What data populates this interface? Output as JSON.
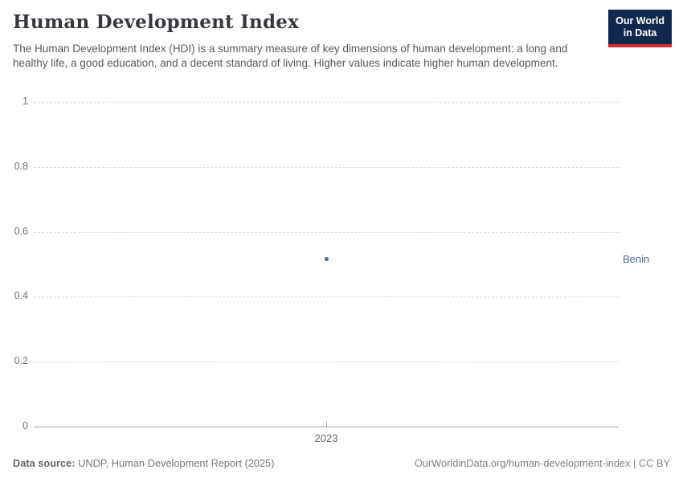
{
  "header": {
    "title": "Human Development Index",
    "subtitle": "The Human Development Index (HDI) is a summary measure of key dimensions of human development: a long and healthy life, a good education, and a decent standard of living. Higher values indicate higher human development.",
    "logo": {
      "line1": "Our World",
      "line2": "in Data"
    }
  },
  "chart_data": {
    "type": "scatter",
    "title": "Human Development Index",
    "x": [
      2023
    ],
    "series": [
      {
        "name": "Benin",
        "values": [
          0.515
        ],
        "color": "#4c6a9c"
      }
    ],
    "xlabel": "",
    "ylabel": "",
    "ylim": [
      0,
      1
    ],
    "y_ticks": [
      {
        "label": "1",
        "value": 1.0
      },
      {
        "label": "0.8",
        "value": 0.8
      },
      {
        "label": "0.6",
        "value": 0.6
      },
      {
        "label": "0.4",
        "value": 0.4
      },
      {
        "label": "0.2",
        "value": 0.2
      },
      {
        "label": "0",
        "value": 0.0
      }
    ],
    "x_ticks": [
      {
        "label": "2023",
        "value": 2023
      }
    ],
    "grid": "horizontal-dashed",
    "legend_position": "right-of-point"
  },
  "entity_label": "Benin",
  "footer": {
    "source_label": "Data source:",
    "source_text": " UNDP, Human Development Report (2025)",
    "right_text": "OurWorldinData.org/human-development-index | CC BY"
  },
  "colors": {
    "accent": "#4c6a9c",
    "logo_bg": "#12294e",
    "logo_red": "#d0342c",
    "grid": "#dcdcdc",
    "axis": "#a3a3a3",
    "title_text": "#35393e",
    "muted_text": "#6e6e6e"
  }
}
